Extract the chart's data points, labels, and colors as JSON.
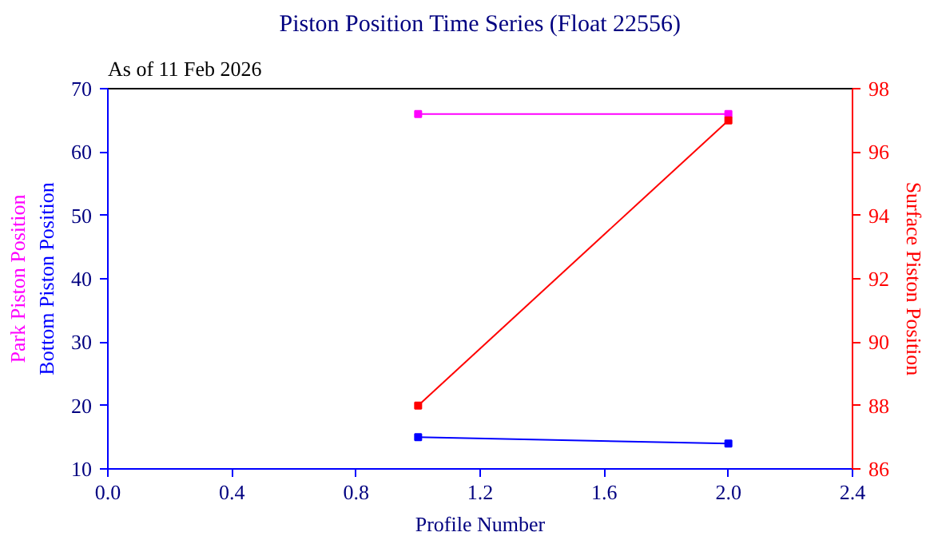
{
  "chart_data": {
    "type": "line",
    "title": "Piston Position Time Series (Float 22556)",
    "subtitle": "As of 11 Feb 2026",
    "xlabel": "Profile Number",
    "x": [
      1,
      2
    ],
    "series": [
      {
        "name": "Park Piston Position",
        "color": "#ff00ff",
        "values": [
          66,
          66
        ],
        "axis": "y"
      },
      {
        "name": "Bottom Piston Position",
        "color": "#0000ff",
        "values": [
          15,
          14
        ],
        "axis": "y"
      },
      {
        "name": "Surface Piston Position",
        "color": "#ff0000",
        "values": [
          88,
          97
        ],
        "axis": "y2"
      }
    ],
    "xlim": [
      0,
      2.4
    ],
    "xticks": [
      {
        "value": 0,
        "label": "0.0"
      },
      0.4,
      0.8,
      1.2,
      1.6,
      {
        "value": 2,
        "label": "2.0"
      },
      2.4
    ],
    "ylim": [
      10,
      70
    ],
    "yticks": [
      10,
      20,
      30,
      40,
      50,
      60,
      70
    ],
    "y2lim": [
      86,
      98
    ],
    "y2ticks": [
      86,
      88,
      90,
      92,
      94,
      96,
      98
    ],
    "marker": "square",
    "line_style": "solid",
    "grid": false
  }
}
